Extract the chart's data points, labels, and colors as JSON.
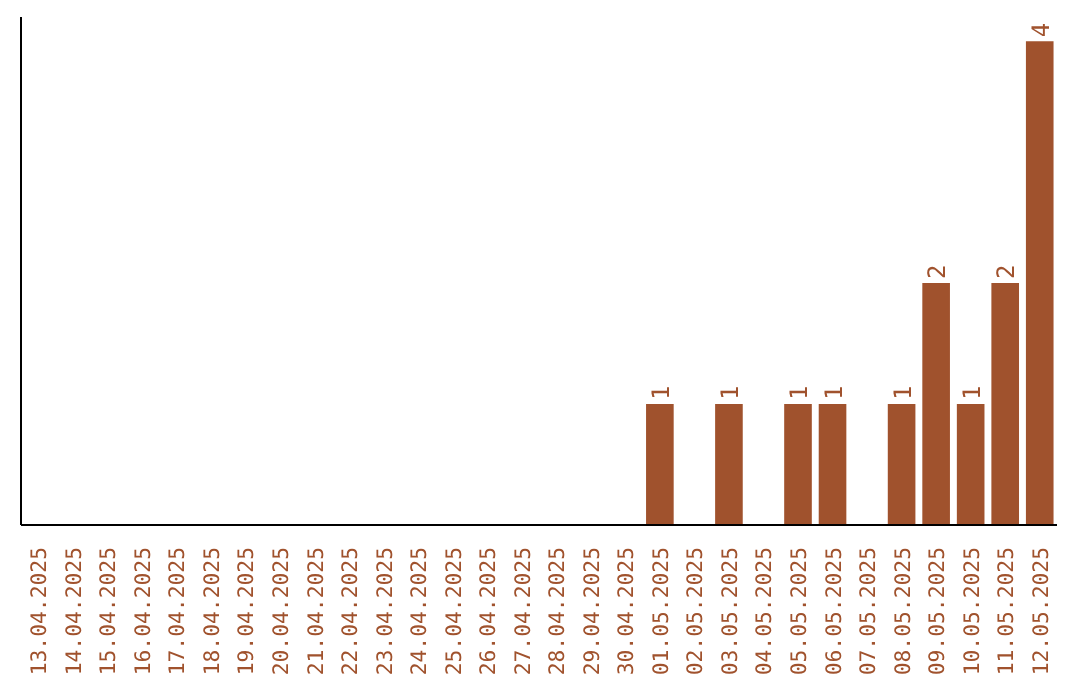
{
  "chart_data": {
    "type": "bar",
    "categories": [
      "13.04.2025",
      "14.04.2025",
      "15.04.2025",
      "16.04.2025",
      "17.04.2025",
      "18.04.2025",
      "19.04.2025",
      "20.04.2025",
      "21.04.2025",
      "22.04.2025",
      "23.04.2025",
      "24.04.2025",
      "25.04.2025",
      "26.04.2025",
      "27.04.2025",
      "28.04.2025",
      "29.04.2025",
      "30.04.2025",
      "01.05.2025",
      "02.05.2025",
      "03.05.2025",
      "04.05.2025",
      "05.05.2025",
      "06.05.2025",
      "07.05.2025",
      "08.05.2025",
      "09.05.2025",
      "10.05.2025",
      "11.05.2025",
      "12.05.2025"
    ],
    "values": [
      null,
      null,
      null,
      null,
      null,
      null,
      null,
      null,
      null,
      null,
      null,
      null,
      null,
      null,
      null,
      null,
      null,
      null,
      1,
      null,
      1,
      null,
      1,
      1,
      null,
      1,
      2,
      1,
      2,
      4
    ],
    "value_labels": [
      null,
      null,
      null,
      null,
      null,
      null,
      null,
      null,
      null,
      null,
      null,
      null,
      null,
      null,
      null,
      null,
      null,
      null,
      "1",
      null,
      "1",
      null,
      "1",
      "1",
      null,
      "1",
      "2",
      "1",
      "2",
      "4"
    ],
    "color": "#a0522d",
    "grid": false,
    "tick_labels": "x"
  }
}
